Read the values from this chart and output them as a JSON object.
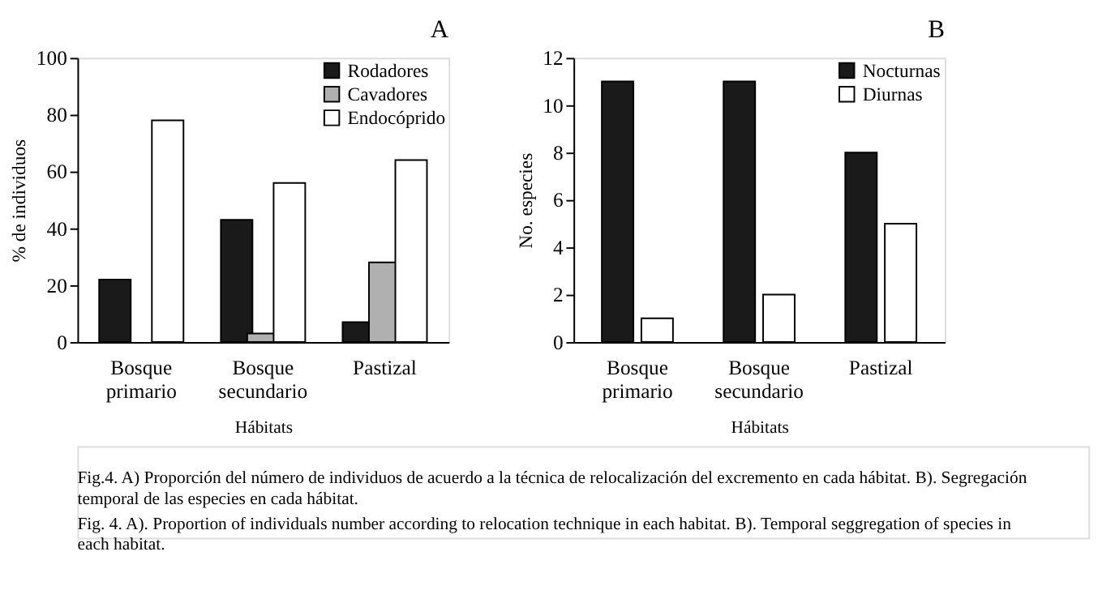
{
  "chart_data": [
    {
      "type": "bar",
      "title": "A",
      "xlabel": "Hábitats",
      "ylabel": "% de individuos",
      "categories": [
        "Bosque primario",
        "Bosque secundario",
        "Pastizal"
      ],
      "ylim": [
        0,
        100
      ],
      "yticks": [
        0,
        20,
        40,
        60,
        80,
        100
      ],
      "grid": false,
      "legend": "top right",
      "series": [
        {
          "name": "Rodadores",
          "color": "#1a1a1a",
          "values": [
            22,
            43,
            7
          ]
        },
        {
          "name": "Cavadores",
          "color": "#b0b0b0",
          "values": [
            null,
            3,
            28
          ]
        },
        {
          "name": "Endocóprido",
          "color": "#ffffff",
          "values": [
            78,
            56,
            64
          ]
        }
      ],
      "annotations": [
        "Fig.4. A) Proporción del número de individuos de acuerdo a la técnica de relocalización del excremento en cada hábitat. B). Segregación temporal de las especies en cada hábitat.",
        "Fig. 4. A). Proportion of individuals number according to relocation technique in each habitat. B). Temporal seggregation of species in each habitat."
      ]
    },
    {
      "type": "bar",
      "title": "B",
      "xlabel": "Hábitats",
      "ylabel": "No. especies",
      "categories": [
        "Bosque primario",
        "Bosque secundario",
        "Pastizal"
      ],
      "ylim": [
        0,
        12
      ],
      "yticks": [
        0,
        2,
        4,
        6,
        8,
        10,
        12
      ],
      "grid": false,
      "legend": "top right",
      "series": [
        {
          "name": "Nocturnas",
          "color": "#1a1a1a",
          "values": [
            11,
            11,
            8
          ]
        },
        {
          "name": "Diurnas",
          "color": "#ffffff",
          "values": [
            1,
            2,
            5
          ]
        }
      ]
    }
  ]
}
